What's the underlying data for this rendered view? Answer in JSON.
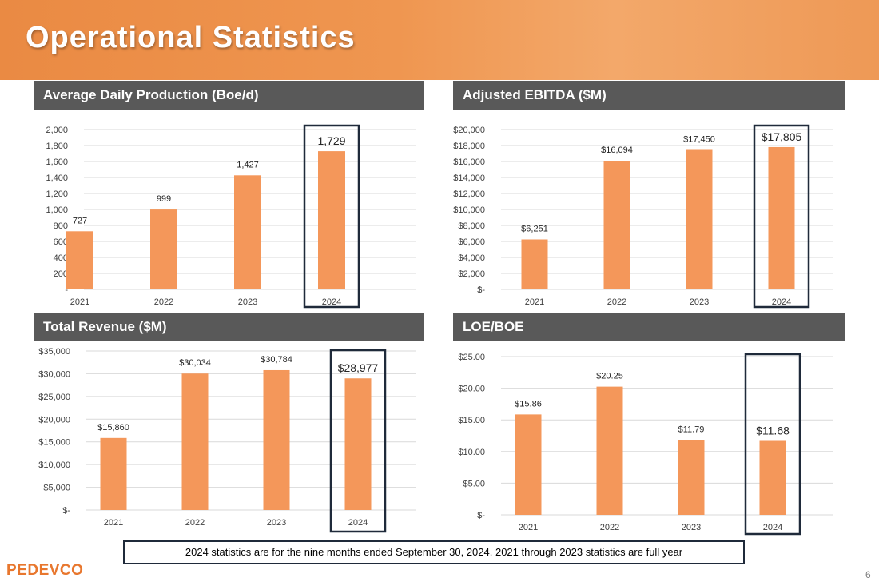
{
  "page": {
    "title": "Operational Statistics",
    "footnote": "2024 statistics are for the nine months ended September 30, 2024. 2021 through 2023 statistics are full year",
    "logo": "PEDEVCO",
    "page_number": "6"
  },
  "colors": {
    "bar": "#f4975a",
    "highlight_box": "#1f2a3a",
    "header_bg": "#595959",
    "gridline": "#d9d9d9"
  },
  "chart_data": [
    {
      "type": "bar",
      "title": "Average Daily Production (Boe/d)",
      "categories": [
        "2021",
        "2022",
        "2023",
        "2024"
      ],
      "values": [
        727,
        999,
        1427,
        1729
      ],
      "data_labels": [
        "727",
        "999",
        "1,427",
        "1,729"
      ],
      "ylim": [
        0,
        2000
      ],
      "yticks": [
        0,
        200,
        400,
        600,
        800,
        1000,
        1200,
        1400,
        1600,
        1800,
        2000
      ],
      "ytick_labels": [
        "-",
        "200",
        "400",
        "600",
        "800",
        "1,000",
        "1,200",
        "1,400",
        "1,600",
        "1,800",
        "2,000"
      ],
      "highlight_category": "2024"
    },
    {
      "type": "bar",
      "title": "Adjusted EBITDA ($M)",
      "categories": [
        "2021",
        "2022",
        "2023",
        "2024"
      ],
      "values": [
        6251,
        16094,
        17450,
        17805
      ],
      "data_labels": [
        "$6,251",
        "$16,094",
        "$17,450",
        "$17,805"
      ],
      "ylim": [
        0,
        20000
      ],
      "yticks": [
        0,
        2000,
        4000,
        6000,
        8000,
        10000,
        12000,
        14000,
        16000,
        18000,
        20000
      ],
      "ytick_labels": [
        "$-",
        "$2,000",
        "$4,000",
        "$6,000",
        "$8,000",
        "$10,000",
        "$12,000",
        "$14,000",
        "$16,000",
        "$18,000",
        "$20,000"
      ],
      "highlight_category": "2024"
    },
    {
      "type": "bar",
      "title": "Total Revenue ($M)",
      "categories": [
        "2021",
        "2022",
        "2023",
        "2024"
      ],
      "values": [
        15860,
        30034,
        30784,
        28977
      ],
      "data_labels": [
        "$15,860",
        "$30,034",
        "$30,784",
        "$28,977"
      ],
      "ylim": [
        0,
        35000
      ],
      "yticks": [
        0,
        5000,
        10000,
        15000,
        20000,
        25000,
        30000,
        35000
      ],
      "ytick_labels": [
        "$-",
        "$5,000",
        "$10,000",
        "$15,000",
        "$20,000",
        "$25,000",
        "$30,000",
        "$35,000"
      ],
      "highlight_category": "2024"
    },
    {
      "type": "bar",
      "title": "LOE/BOE",
      "categories": [
        "2021",
        "2022",
        "2023",
        "2024"
      ],
      "values": [
        15.86,
        20.25,
        11.79,
        11.68
      ],
      "data_labels": [
        "$15.86",
        "$20.25",
        "$11.79",
        "$11.68"
      ],
      "ylim": [
        0,
        25
      ],
      "yticks": [
        0,
        5,
        10,
        15,
        20,
        25
      ],
      "ytick_labels": [
        "$-",
        "$5.00",
        "$10.00",
        "$15.00",
        "$20.00",
        "$25.00"
      ],
      "highlight_category": "2024"
    }
  ]
}
